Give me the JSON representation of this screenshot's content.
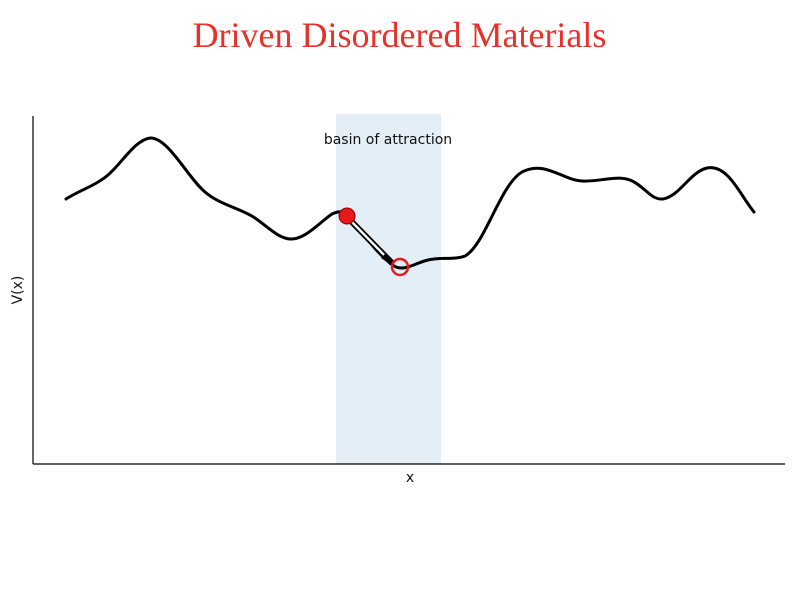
{
  "title": "Driven Disordered Materials",
  "diagram": {
    "xlabel": "x",
    "ylabel": "V(x)",
    "region_label": "basin of attraction",
    "colors": {
      "title": "#e8312a",
      "region": "#e3eef6",
      "curve": "#000000",
      "start_marker": "#e8191b",
      "end_marker": "#e8191b",
      "axes": "#000000"
    },
    "markers": [
      {
        "name": "start-point",
        "style": "filled"
      },
      {
        "name": "end-point",
        "style": "hollow"
      }
    ]
  }
}
